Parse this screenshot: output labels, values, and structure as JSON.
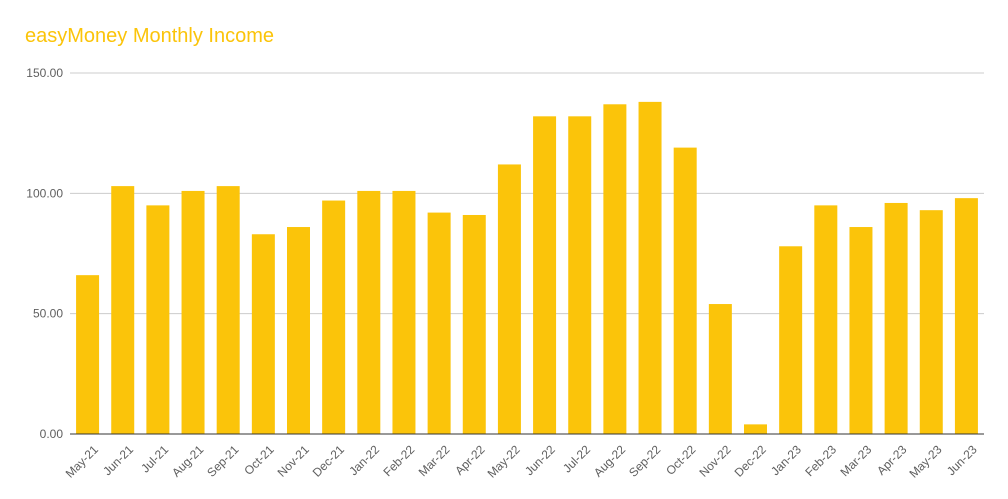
{
  "colors": {
    "accent": "#fbc40a",
    "bar": "#fbc40a",
    "title": "#fbc40a",
    "grid": "#cccccc",
    "axis_text": "#5f5f5f"
  },
  "chart_data": {
    "type": "bar",
    "title": "easyMoney Monthly Income",
    "xlabel": "",
    "ylabel": "",
    "ylim": [
      0,
      150
    ],
    "yticks": [
      "0.00",
      "50.00",
      "100.00",
      "150.00"
    ],
    "grid": true,
    "legend": "none",
    "categories": [
      "May-21",
      "Jun-21",
      "Jul-21",
      "Aug-21",
      "Sep-21",
      "Oct-21",
      "Nov-21",
      "Dec-21",
      "Jan-22",
      "Feb-22",
      "Mar-22",
      "Apr-22",
      "May-22",
      "Jun-22",
      "Jul-22",
      "Aug-22",
      "Sep-22",
      "Oct-22",
      "Nov-22",
      "Dec-22",
      "Jan-23",
      "Feb-23",
      "Mar-23",
      "Apr-23",
      "May-23",
      "Jun-23"
    ],
    "values": [
      66,
      103,
      95,
      101,
      103,
      83,
      86,
      97,
      101,
      101,
      92,
      91,
      112,
      132,
      132,
      137,
      138,
      119,
      54,
      4,
      78,
      95,
      86,
      96,
      93,
      98
    ]
  }
}
